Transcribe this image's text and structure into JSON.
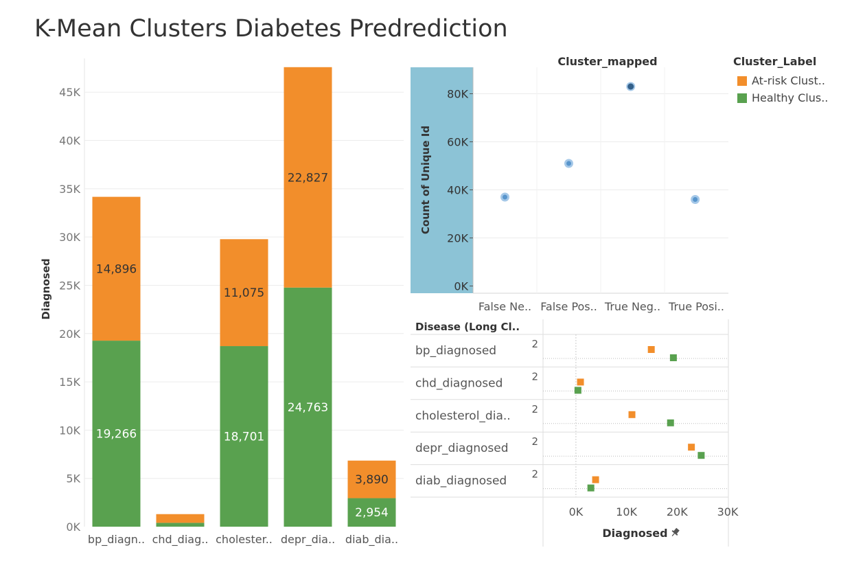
{
  "dashboard": {
    "title": "K-Mean Clusters Diabetes Predrediction"
  },
  "colors": {
    "at_risk": "#F28E2B",
    "healthy": "#59A14F",
    "scatter_point": "#5B9BD5",
    "panel_highlight": "#8CC3D6",
    "grid": "#ECECEC"
  },
  "legend": {
    "title": "Cluster_Label",
    "items": [
      {
        "label": "At-risk Clust..",
        "color": "#F28E2B"
      },
      {
        "label": "Healthy Clus..",
        "color": "#59A14F"
      }
    ]
  },
  "chart_data": [
    {
      "id": "stacked-bar",
      "type": "bar",
      "stacked": true,
      "ylabel": "Diagnosed",
      "ylim": [
        0,
        48500
      ],
      "yticks": [
        0,
        5000,
        10000,
        15000,
        20000,
        25000,
        30000,
        35000,
        40000,
        45000
      ],
      "ytick_labels": [
        "0K",
        "5K",
        "10K",
        "15K",
        "20K",
        "25K",
        "30K",
        "35K",
        "40K",
        "45K"
      ],
      "categories": [
        "bp_diagn..",
        "chd_diag..",
        "cholester..",
        "depr_dia..",
        "diab_dia.."
      ],
      "series": [
        {
          "name": "Healthy Clus..",
          "color": "#59A14F",
          "values": [
            19266,
            400,
            18701,
            24763,
            2954
          ],
          "labels": [
            "19,266",
            "",
            "18,701",
            "24,763",
            "2,954"
          ]
        },
        {
          "name": "At-risk Clust..",
          "color": "#F28E2B",
          "values": [
            14896,
            900,
            11075,
            22827,
            3890
          ],
          "labels": [
            "14,896",
            "",
            "11,075",
            "22,827",
            "3,890"
          ]
        }
      ],
      "grid": true
    },
    {
      "id": "cluster-scatter",
      "type": "scatter",
      "title": "Cluster_mapped",
      "ylabel": "Count of Unique Id",
      "ylim": [
        -3000,
        91000
      ],
      "yticks": [
        0,
        20000,
        40000,
        60000,
        80000
      ],
      "ytick_labels": [
        "0K",
        "20K",
        "40K",
        "60K",
        "80K"
      ],
      "categories": [
        "False Ne..",
        "False Pos..",
        "True Neg..",
        "True Posi.."
      ],
      "points": [
        {
          "category": "False Ne..",
          "offset": 0.5,
          "y": 37000
        },
        {
          "category": "False Pos..",
          "offset": 0.5,
          "y": 51000
        },
        {
          "category": "True Neg..",
          "offset": 0.47,
          "y": 83000,
          "highlight": true
        },
        {
          "category": "True Posi..",
          "offset": 0.48,
          "y": 36000
        }
      ],
      "grid": true
    },
    {
      "id": "disease-dot",
      "type": "scatter",
      "row_header": "Disease (Long Cl..",
      "xlabel": "Diagnosed",
      "xlim": [
        -6500,
        30000
      ],
      "xticks": [
        0,
        10000,
        20000,
        30000
      ],
      "xtick_labels": [
        "0K",
        "10K",
        "20K",
        "30K"
      ],
      "sub_row_label": "2",
      "rows": [
        {
          "label": "bp_diagnosed",
          "at_risk": 14896,
          "healthy": 19266
        },
        {
          "label": "chd_diagnosed",
          "at_risk": 900,
          "healthy": 400
        },
        {
          "label": "cholesterol_dia..",
          "at_risk": 11075,
          "healthy": 18701
        },
        {
          "label": "depr_diagnosed",
          "at_risk": 22827,
          "healthy": 24763
        },
        {
          "label": "diab_diagnosed",
          "at_risk": 3890,
          "healthy": 2954
        }
      ]
    }
  ]
}
